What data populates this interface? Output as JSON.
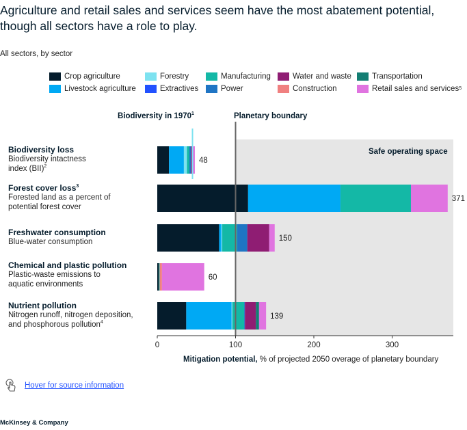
{
  "title": "Agriculture and retail sales and services seem have the most abatement potential, though all sectors have a role to play.",
  "subtitle": "All sectors, by sector",
  "colors": {
    "crop": "#051c2c",
    "forestry": "#7de2f0",
    "manufacturing": "#14b8a6",
    "water": "#8f1d73",
    "transport": "#137e73",
    "livestock": "#00a9f4",
    "extractives": "#2251ff",
    "power": "#1f75c4",
    "construction": "#f08080",
    "retail": "#e074e0",
    "boundary_line": "#666666",
    "safe_bg": "#e6e6e6",
    "bio1970_line": "#7de2f0"
  },
  "legend": [
    {
      "key": "crop",
      "label": "Crop agriculture"
    },
    {
      "key": "forestry",
      "label": "Forestry"
    },
    {
      "key": "manufacturing",
      "label": "Manufacturing"
    },
    {
      "key": "water",
      "label": "Water and waste"
    },
    {
      "key": "transport",
      "label": "Transportation"
    },
    {
      "key": "livestock",
      "label": "Livestock agriculture"
    },
    {
      "key": "extractives",
      "label": "Extractives"
    },
    {
      "key": "power",
      "label": "Power"
    },
    {
      "key": "construction",
      "label": "Construction"
    },
    {
      "key": "retail",
      "label": "Retail sales and services",
      "note": "5"
    }
  ],
  "annotations": {
    "biodiversity_1970": "Biodiversity in 1970",
    "biodiversity_1970_note": "1",
    "planetary_boundary": "Planetary boundary",
    "safe_space": "Safe operating space"
  },
  "rows": [
    {
      "title": "Biodiversity loss",
      "sub1": "Biodiversity intactness",
      "sub2": "index (BII)",
      "note": "2",
      "title_note": ""
    },
    {
      "title": "Forest cover loss",
      "title_note": "3",
      "sub1": "Forested land as a percent of",
      "sub2": "potential forest cover",
      "note": ""
    },
    {
      "title": "Freshwater consumption",
      "title_note": "",
      "sub1": "Blue-water consumption",
      "sub2": "",
      "note": ""
    },
    {
      "title": "Chemical and plastic pollution",
      "title_note": "",
      "sub1": "Plastic-waste emissions to",
      "sub2": "aquatic environments",
      "note": ""
    },
    {
      "title": "Nutrient pollution",
      "title_note": "",
      "sub1": "Nitrogen runoff, nitrogen deposition,",
      "sub2": "and phosphorous pollution",
      "note": "4"
    }
  ],
  "x_axis": {
    "title_bold": "Mitigation potential,",
    "title_rest": " % of projected 2050 overage of planetary boundary"
  },
  "chart_data": {
    "type": "bar",
    "orientation": "horizontal",
    "stacked": true,
    "xlim": [
      0,
      375
    ],
    "xticks": [
      0,
      100,
      200,
      300
    ],
    "planetary_boundary": 100,
    "biodiversity_1970": 45,
    "categories": [
      "Biodiversity loss",
      "Forest cover loss",
      "Freshwater consumption",
      "Chemical and plastic pollution",
      "Nutrient pollution"
    ],
    "totals": [
      48,
      371,
      150,
      60,
      139
    ],
    "series": [
      {
        "name": "Crop agriculture",
        "key": "crop",
        "values": [
          15,
          116,
          79,
          2,
          37
        ]
      },
      {
        "name": "Livestock agriculture",
        "key": "livestock",
        "values": [
          19,
          118,
          3,
          0,
          58
        ]
      },
      {
        "name": "Forestry",
        "key": "forestry",
        "values": [
          4,
          0,
          1,
          0,
          1
        ]
      },
      {
        "name": "Manufacturing",
        "key": "manufacturing",
        "values": [
          3,
          90,
          19,
          1,
          15
        ]
      },
      {
        "name": "Extractives",
        "key": "extractives",
        "values": [
          0,
          0,
          0,
          0,
          0
        ]
      },
      {
        "name": "Power",
        "key": "power",
        "values": [
          2,
          0,
          13,
          0,
          1
        ]
      },
      {
        "name": "Water and waste",
        "key": "water",
        "values": [
          2,
          0,
          28,
          0,
          14
        ]
      },
      {
        "name": "Construction",
        "key": "construction",
        "values": [
          0,
          0,
          0,
          3,
          0
        ]
      },
      {
        "name": "Transportation",
        "key": "transport",
        "values": [
          0,
          0,
          0,
          0,
          4
        ]
      },
      {
        "name": "Retail sales and services",
        "key": "retail",
        "values": [
          3,
          47,
          7,
          54,
          9
        ]
      }
    ]
  },
  "source_link": "Hover for source information",
  "brand": "McKinsey & Company"
}
